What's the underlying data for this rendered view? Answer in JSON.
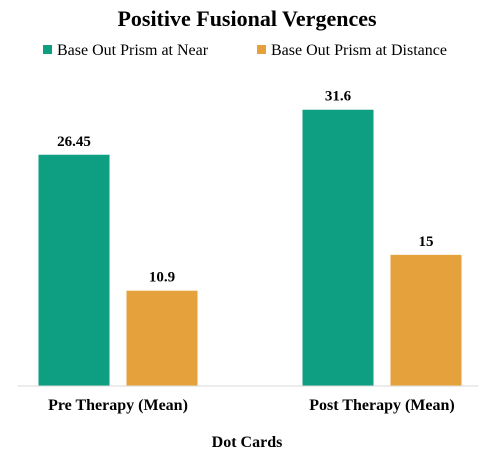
{
  "chart_data": {
    "type": "bar",
    "title": "Positive Fusional Vergences",
    "xlabel": "Dot Cards",
    "ylabel": "",
    "categories": [
      "Pre Therapy (Mean)",
      "Post Therapy (Mean)"
    ],
    "series": [
      {
        "name": "Base Out Prism at Near",
        "values": [
          26.45,
          31.6
        ],
        "color": "#0e9e82"
      },
      {
        "name": "Base Out Prism at Distance",
        "values": [
          10.9,
          15
        ],
        "color": "#e5a23c"
      }
    ],
    "ylim": [
      0,
      35
    ],
    "grid": false,
    "legend_position": "top"
  }
}
